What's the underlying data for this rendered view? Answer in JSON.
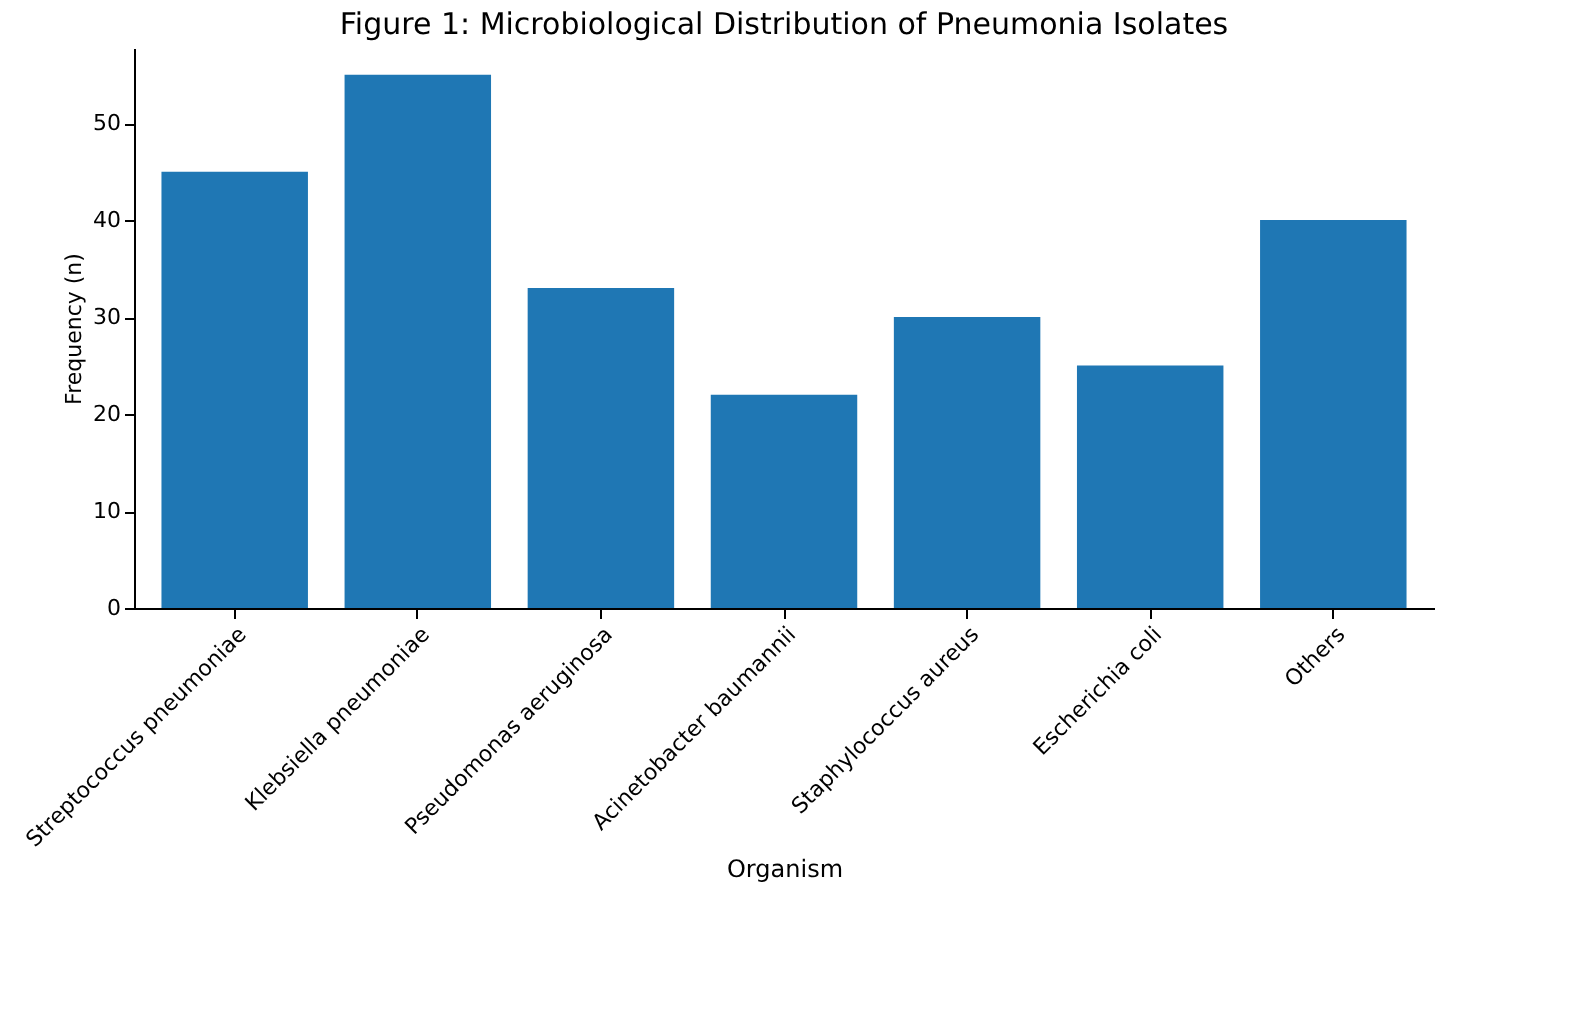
{
  "chart_data": {
    "type": "bar",
    "title": "Figure 1: Microbiological Distribution of Pneumonia Isolates",
    "xlabel": "Organism",
    "ylabel": "Frequency (n)",
    "categories": [
      "Streptococcus pneumoniae",
      "Klebsiella pneumoniae",
      "Pseudomonas aeruginosa",
      "Acinetobacter baumannii",
      "Staphylococcus aureus",
      "Escherichia coli",
      "Others"
    ],
    "values": [
      45,
      55,
      33,
      22,
      30,
      25,
      40
    ],
    "color": "#1f77b4",
    "ylim": [
      0,
      57.75
    ],
    "yticks": [
      0,
      10,
      20,
      30,
      40,
      50
    ],
    "grid": false
  }
}
